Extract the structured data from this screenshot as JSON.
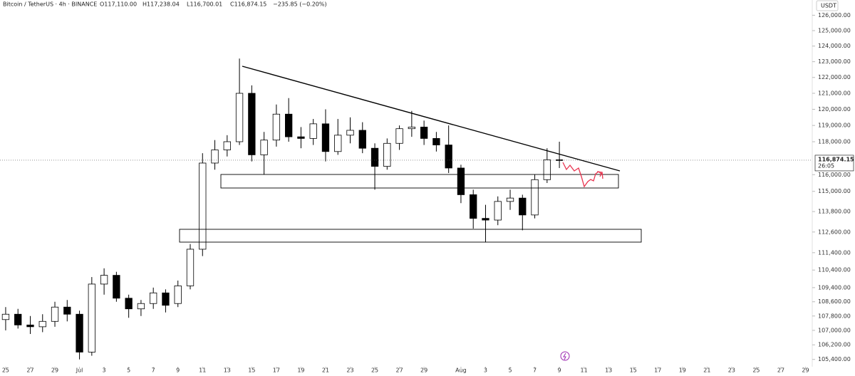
{
  "header": {
    "symbol": "Bitcoin / TetherUS · 4h · BINANCE",
    "open": "O117,110.00",
    "high": "H117,238.04",
    "low": "L116,700.01",
    "close": "C116,874.15",
    "change": "−235.85 (−0.20%)"
  },
  "chart_data": {
    "type": "candlestick",
    "currency": "USDT",
    "log": true,
    "up_color": "#ffffff",
    "down_color": "#000000",
    "border_color": "#000000",
    "last_price": {
      "value": 116874.15,
      "label": "116,874.15"
    },
    "countdown": "26:05",
    "x": [
      0,
      1,
      2,
      3,
      4,
      5,
      6,
      7,
      8,
      9,
      10,
      11,
      12,
      13,
      14,
      15,
      16,
      17,
      18,
      19,
      20,
      21,
      22,
      23,
      24,
      25,
      26,
      27,
      28,
      29,
      30,
      31,
      32,
      33,
      34,
      35,
      36,
      37,
      38,
      39,
      40,
      41,
      42,
      43,
      44,
      45
    ],
    "open": [
      107600,
      107900,
      107300,
      107200,
      107500,
      108300,
      107900,
      105800,
      109600,
      110100,
      108800,
      108200,
      108500,
      109100,
      108500,
      109500,
      111600,
      116700,
      117500,
      118000,
      121000,
      117200,
      118100,
      119700,
      118300,
      118200,
      119100,
      117400,
      118400,
      118700,
      117600,
      116500,
      117900,
      118800,
      118900,
      118200,
      117800,
      116400,
      114800,
      113400,
      113300,
      114400,
      114600,
      113600,
      115700,
      116900
    ],
    "high": [
      108300,
      108200,
      107800,
      107900,
      108600,
      108700,
      108100,
      110000,
      110500,
      110300,
      109000,
      108700,
      109400,
      109300,
      109800,
      111900,
      117300,
      118100,
      118400,
      123200,
      121500,
      118600,
      120300,
      120700,
      118900,
      119400,
      120000,
      119400,
      119500,
      119200,
      117900,
      118200,
      119000,
      119900,
      119300,
      118600,
      119000,
      116600,
      115100,
      114200,
      114700,
      115100,
      114800,
      116000,
      117600,
      118000
    ],
    "low": [
      107000,
      107100,
      106800,
      106900,
      107200,
      107500,
      105400,
      105600,
      109000,
      108600,
      107700,
      107800,
      108200,
      108000,
      108300,
      109300,
      111200,
      116300,
      117100,
      117800,
      116800,
      116000,
      117700,
      118000,
      117600,
      117800,
      116800,
      117200,
      117900,
      117300,
      115100,
      116300,
      117500,
      118300,
      117800,
      117400,
      116100,
      114300,
      112800,
      112000,
      113000,
      113900,
      112700,
      113400,
      115500,
      116400
    ],
    "close": [
      107900,
      107300,
      107200,
      107500,
      108300,
      107900,
      105800,
      109600,
      110100,
      108800,
      108200,
      108500,
      109100,
      108400,
      109500,
      111600,
      116700,
      117500,
      118000,
      121000,
      117200,
      118100,
      119700,
      118300,
      118200,
      119100,
      117400,
      118400,
      118700,
      117600,
      116500,
      117900,
      118800,
      118900,
      118200,
      117800,
      116400,
      114800,
      113400,
      113300,
      114400,
      114600,
      113600,
      115700,
      116900,
      116874.15
    ],
    "xlim": [
      -0.46,
      65.55
    ],
    "xticks": [
      {
        "value": 0,
        "label": "25"
      },
      {
        "value": 2,
        "label": "27"
      },
      {
        "value": 4,
        "label": "29"
      },
      {
        "value": 6,
        "label": "Jul"
      },
      {
        "value": 8,
        "label": "3"
      },
      {
        "value": 10,
        "label": "5"
      },
      {
        "value": 12,
        "label": "7"
      },
      {
        "value": 14,
        "label": "9"
      },
      {
        "value": 16,
        "label": "11"
      },
      {
        "value": 18,
        "label": "13"
      },
      {
        "value": 20,
        "label": "15"
      },
      {
        "value": 22,
        "label": "17"
      },
      {
        "value": 24,
        "label": "19"
      },
      {
        "value": 26,
        "label": "21"
      },
      {
        "value": 28,
        "label": "23"
      },
      {
        "value": 30,
        "label": "25"
      },
      {
        "value": 32,
        "label": "27"
      },
      {
        "value": 34,
        "label": "29"
      },
      {
        "value": 37,
        "label": "Aug"
      },
      {
        "value": 39,
        "label": "3"
      },
      {
        "value": 41,
        "label": "5"
      },
      {
        "value": 43,
        "label": "7"
      },
      {
        "value": 45,
        "label": "9"
      },
      {
        "value": 47,
        "label": "11"
      },
      {
        "value": 49,
        "label": "13"
      },
      {
        "value": 51,
        "label": "15"
      },
      {
        "value": 53,
        "label": "17"
      },
      {
        "value": 55,
        "label": "19"
      },
      {
        "value": 57,
        "label": "21"
      },
      {
        "value": 59,
        "label": "23"
      },
      {
        "value": 61,
        "label": "25"
      },
      {
        "value": 63,
        "label": "27"
      },
      {
        "value": 65,
        "label": "29"
      }
    ],
    "ylim": [
      105000,
      127000
    ],
    "yticks": [
      {
        "value": 126000,
        "label": "126,000.00"
      },
      {
        "value": 125000,
        "label": "125,000.00"
      },
      {
        "value": 124000,
        "label": "124,000.00"
      },
      {
        "value": 123000,
        "label": "123,000.00"
      },
      {
        "value": 122000,
        "label": "122,000.00"
      },
      {
        "value": 121000,
        "label": "121,000.00"
      },
      {
        "value": 120000,
        "label": "120,000.00"
      },
      {
        "value": 119000,
        "label": "119,000.00"
      },
      {
        "value": 118000,
        "label": "118,000.00"
      },
      {
        "value": 116000,
        "label": "116,000.00"
      },
      {
        "value": 115000,
        "label": "115,000.00"
      },
      {
        "value": 113800,
        "label": "113,800.00"
      },
      {
        "value": 112600,
        "label": "112,600.00"
      },
      {
        "value": 111400,
        "label": "111,400.00"
      },
      {
        "value": 110400,
        "label": "110,400.00"
      },
      {
        "value": 109400,
        "label": "109,400.00"
      },
      {
        "value": 108600,
        "label": "108,600.00"
      },
      {
        "value": 107800,
        "label": "107,800.00"
      },
      {
        "value": 107000,
        "label": "107,000.00"
      },
      {
        "value": 106200,
        "label": "106,200.00"
      },
      {
        "value": 105400,
        "label": "105,400.00"
      }
    ]
  }
}
